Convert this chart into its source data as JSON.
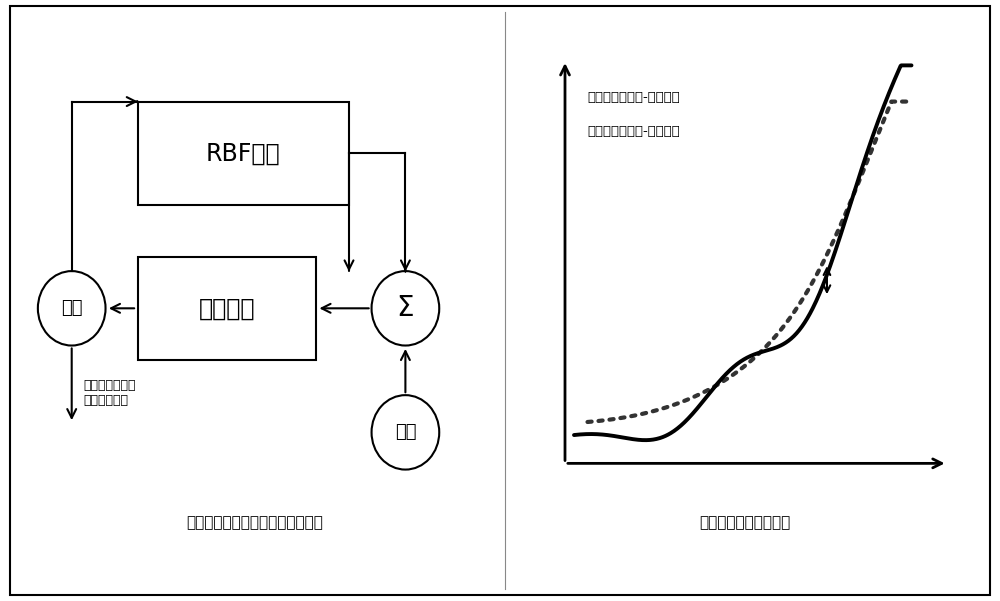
{
  "bg_color": "#ffffff",
  "border_color": "#000000",
  "title_left": "求取目标输出对应的输入参数框图",
  "title_right": "实际和拟合误差示意图",
  "rbf_label": "RBF网络",
  "reverse_label": "反向计算",
  "input_label": "输入",
  "sigma_label": "Σ",
  "target_label": "目标",
  "legend_line1": "虚线为实际输入-输出关系",
  "legend_line2": "实线为拟合输入-输出关系",
  "annotation_label": "目标输出对应的\n最佳输入参数"
}
